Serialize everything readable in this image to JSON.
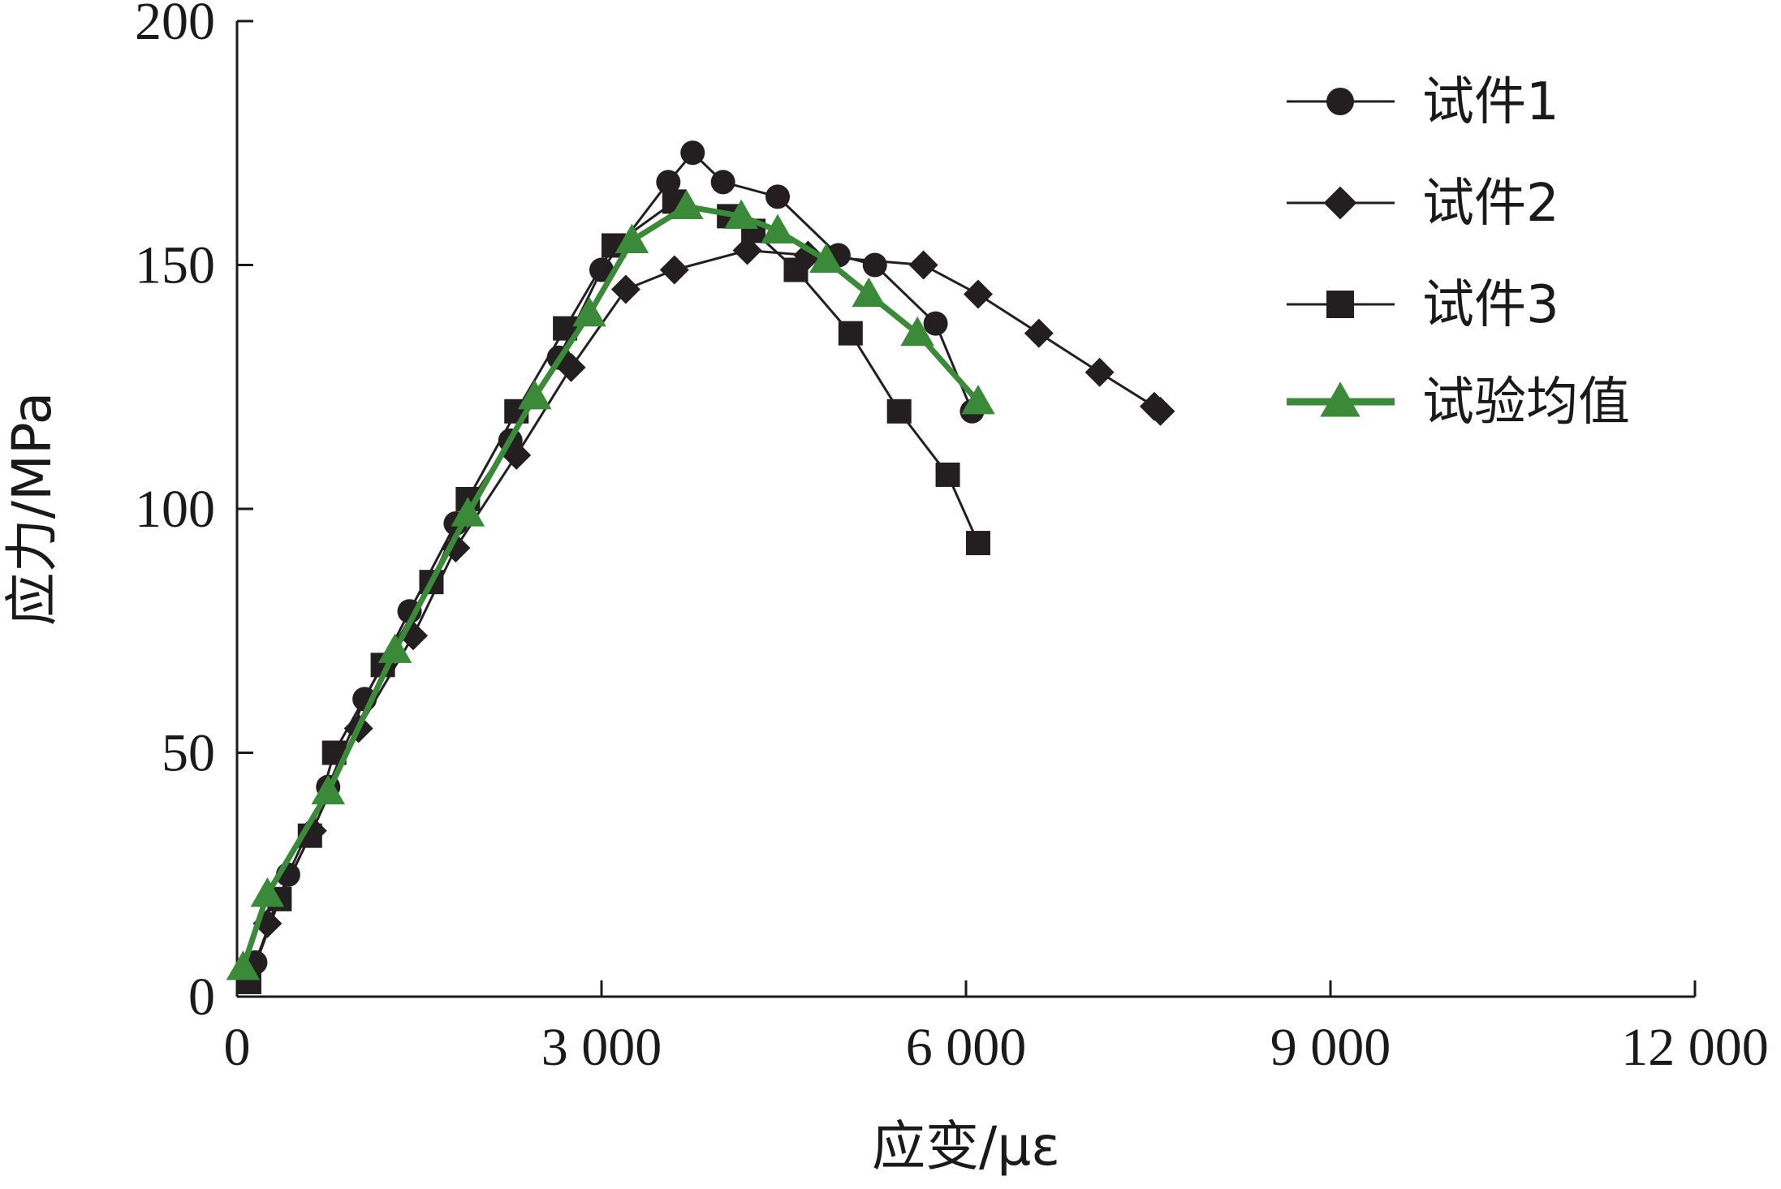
{
  "chart_data": {
    "type": "line",
    "xlabel": "应变/με",
    "ylabel": "应力/MPa",
    "xlim": [
      0,
      12000
    ],
    "ylim": [
      0,
      200
    ],
    "x_ticks": [
      0,
      3000,
      6000,
      9000,
      12000
    ],
    "x_tick_labels": [
      "0",
      "3 000",
      "6 000",
      "9 000",
      "12 000"
    ],
    "y_ticks": [
      0,
      50,
      100,
      150,
      200
    ],
    "y_tick_labels": [
      "0",
      "50",
      "100",
      "150",
      "200"
    ],
    "grid": false,
    "legend_position": "top-right",
    "series": [
      {
        "name": "试件1",
        "marker": "circle",
        "color": "#231f20",
        "points": [
          [
            150,
            7
          ],
          [
            420,
            25
          ],
          [
            750,
            43
          ],
          [
            1050,
            61
          ],
          [
            1420,
            79
          ],
          [
            1800,
            97
          ],
          [
            2250,
            114
          ],
          [
            2650,
            131
          ],
          [
            3000,
            149
          ],
          [
            3550,
            167
          ],
          [
            3750,
            173
          ],
          [
            4000,
            167
          ],
          [
            4450,
            164
          ],
          [
            4950,
            152
          ],
          [
            5250,
            150
          ],
          [
            5750,
            138
          ],
          [
            6050,
            120
          ]
        ]
      },
      {
        "name": "试件2",
        "marker": "diamond",
        "color": "#231f20",
        "points": [
          [
            250,
            15
          ],
          [
            620,
            34
          ],
          [
            1000,
            55
          ],
          [
            1450,
            74
          ],
          [
            1800,
            92
          ],
          [
            2300,
            111
          ],
          [
            2750,
            129
          ],
          [
            3200,
            145
          ],
          [
            3600,
            149
          ],
          [
            4200,
            153
          ],
          [
            4700,
            152
          ],
          [
            5650,
            150
          ],
          [
            6100,
            144
          ],
          [
            6600,
            136
          ],
          [
            7100,
            128
          ],
          [
            7550,
            121
          ],
          [
            7600,
            120
          ]
        ]
      },
      {
        "name": "试件3",
        "marker": "square",
        "color": "#231f20",
        "points": [
          [
            100,
            3
          ],
          [
            350,
            20
          ],
          [
            600,
            33
          ],
          [
            800,
            50
          ],
          [
            1200,
            68
          ],
          [
            1600,
            85
          ],
          [
            1900,
            102
          ],
          [
            2300,
            120
          ],
          [
            2700,
            137
          ],
          [
            3100,
            154
          ],
          [
            3600,
            163
          ],
          [
            4050,
            160
          ],
          [
            4250,
            157
          ],
          [
            4600,
            149
          ],
          [
            5050,
            136
          ],
          [
            5450,
            120
          ],
          [
            5850,
            107
          ],
          [
            6100,
            93
          ]
        ]
      },
      {
        "name": "试验均值",
        "marker": "triangle",
        "color": "#3a8a3a",
        "points": [
          [
            50,
            6
          ],
          [
            250,
            21
          ],
          [
            750,
            42
          ],
          [
            1300,
            71
          ],
          [
            1900,
            99
          ],
          [
            2450,
            123
          ],
          [
            2900,
            140
          ],
          [
            3250,
            155
          ],
          [
            3700,
            162
          ],
          [
            4150,
            160
          ],
          [
            4450,
            157
          ],
          [
            4850,
            151
          ],
          [
            5200,
            144
          ],
          [
            5600,
            136
          ],
          [
            6100,
            122
          ]
        ]
      }
    ]
  }
}
